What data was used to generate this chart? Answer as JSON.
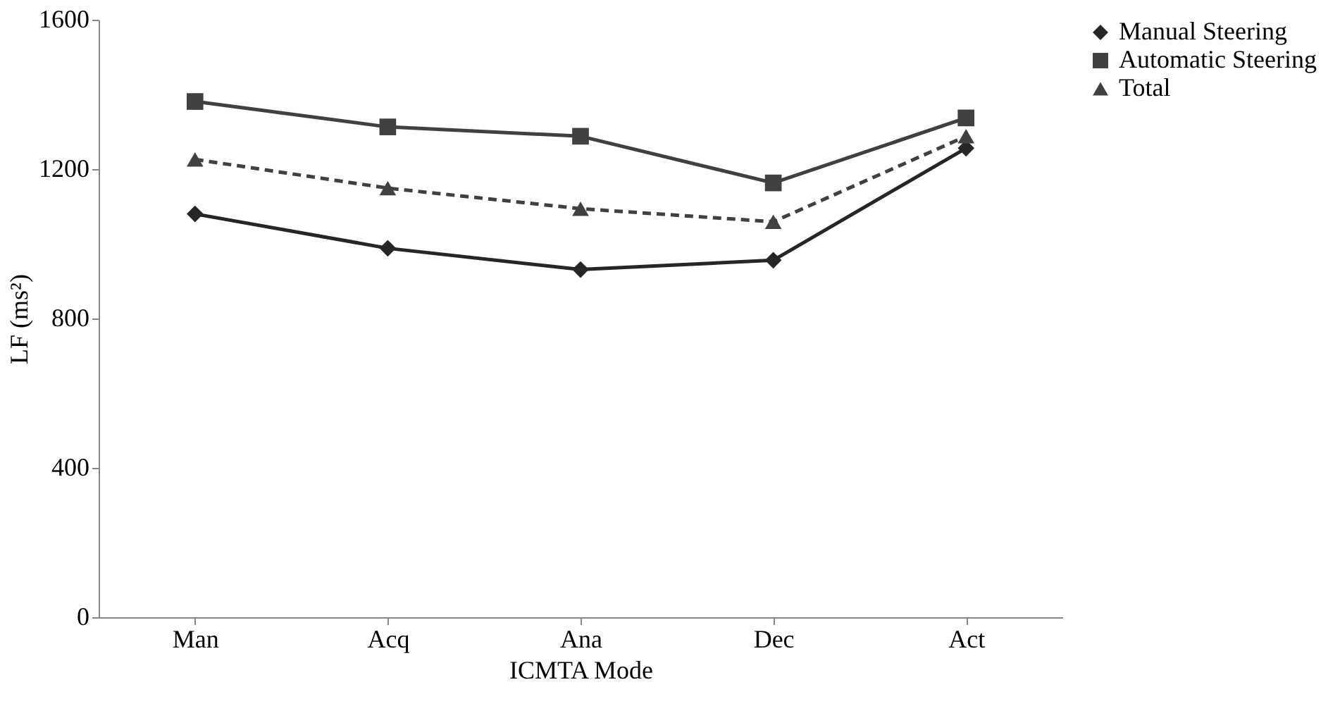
{
  "chart_data": {
    "type": "line",
    "xlabel": "ICMTA Mode",
    "ylabel": "LF (ms²)",
    "categories": [
      "Man",
      "Acq",
      "Ana",
      "Dec",
      "Act"
    ],
    "series": [
      {
        "name": "Manual Steering",
        "color": "#262626",
        "values": [
          1080,
          988,
          931,
          956,
          1256
        ],
        "marker": "diamond",
        "line_style": "solid"
      },
      {
        "name": "Automatic Steering",
        "color": "#404040",
        "values": [
          1381,
          1313,
          1288,
          1163,
          1337
        ],
        "marker": "square",
        "line_style": "solid"
      },
      {
        "name": "Total",
        "color": "#404040",
        "values": [
          1226,
          1149,
          1094,
          1059,
          1288
        ],
        "marker": "triangle",
        "line_style": "dashed"
      }
    ],
    "ylim": [
      0,
      1600
    ],
    "yticks": [
      0,
      400,
      800,
      1200,
      1600
    ],
    "grid": false,
    "legend": "right"
  }
}
